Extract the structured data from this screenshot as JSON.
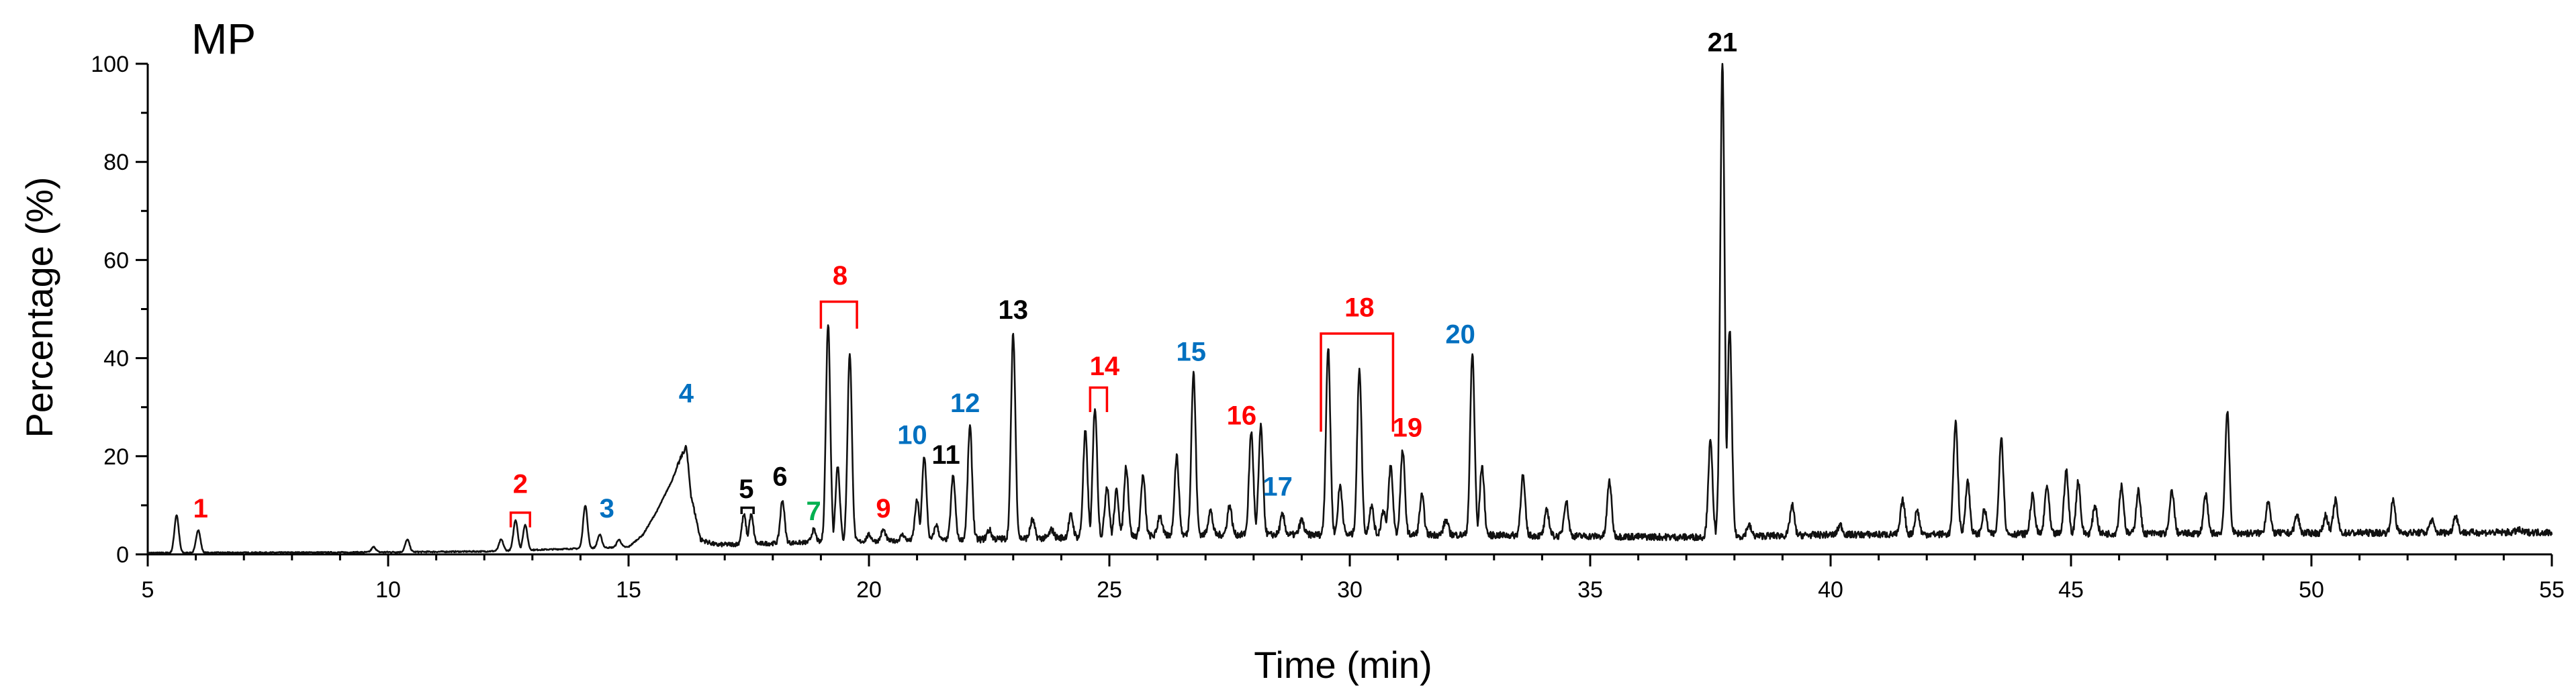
{
  "chart_data": {
    "type": "line",
    "title": "MP",
    "xlabel": "Time (min)",
    "ylabel": "Percentage (%)",
    "xlim": [
      5,
      55
    ],
    "ylim": [
      0,
      100
    ],
    "x_ticks": [
      "5",
      "10",
      "15",
      "20",
      "25",
      "30",
      "35",
      "40",
      "45",
      "50",
      "55"
    ],
    "y_ticks": [
      "0",
      "20",
      "40",
      "60",
      "80",
      "100"
    ],
    "grid": false,
    "colors": {
      "red": "#ff0000",
      "blue": "#0070c0",
      "green": "#00b050",
      "black": "#000000",
      "trace": "#111111"
    },
    "baseline_segments": [
      {
        "x": 5.0,
        "y": 0.3
      },
      {
        "x": 9.0,
        "y": 0.4
      },
      {
        "x": 12.0,
        "y": 0.6
      },
      {
        "x": 15.0,
        "y": 1.5
      },
      {
        "x": 17.0,
        "y": 2.0
      },
      {
        "x": 19.0,
        "y": 2.5
      },
      {
        "x": 22.0,
        "y": 3.0
      },
      {
        "x": 27.0,
        "y": 4.0
      },
      {
        "x": 32.0,
        "y": 4.0
      },
      {
        "x": 37.0,
        "y": 3.5
      },
      {
        "x": 40.0,
        "y": 4.0
      },
      {
        "x": 45.0,
        "y": 4.2
      },
      {
        "x": 55.0,
        "y": 4.5
      }
    ],
    "broad_hump": [
      {
        "x": 15.0,
        "y": 1.5
      },
      {
        "x": 15.3,
        "y": 4
      },
      {
        "x": 15.6,
        "y": 9
      },
      {
        "x": 15.9,
        "y": 15
      },
      {
        "x": 16.1,
        "y": 20
      },
      {
        "x": 16.2,
        "y": 22
      },
      {
        "x": 16.3,
        "y": 12
      },
      {
        "x": 16.5,
        "y": 3
      },
      {
        "x": 16.8,
        "y": 2
      }
    ],
    "peaks": [
      {
        "x": 5.6,
        "y": 8
      },
      {
        "x": 6.05,
        "y": 5
      },
      {
        "x": 9.7,
        "y": 1.5
      },
      {
        "x": 10.4,
        "y": 3
      },
      {
        "x": 12.35,
        "y": 3
      },
      {
        "x": 12.65,
        "y": 7
      },
      {
        "x": 12.85,
        "y": 6
      },
      {
        "x": 14.1,
        "y": 10
      },
      {
        "x": 14.4,
        "y": 4
      },
      {
        "x": 14.8,
        "y": 3
      },
      {
        "x": 17.4,
        "y": 8
      },
      {
        "x": 17.55,
        "y": 8
      },
      {
        "x": 18.2,
        "y": 11
      },
      {
        "x": 18.85,
        "y": 5
      },
      {
        "x": 19.15,
        "y": 47
      },
      {
        "x": 19.35,
        "y": 18
      },
      {
        "x": 19.6,
        "y": 41
      },
      {
        "x": 20.0,
        "y": 4
      },
      {
        "x": 20.3,
        "y": 5
      },
      {
        "x": 20.7,
        "y": 4
      },
      {
        "x": 21.0,
        "y": 11
      },
      {
        "x": 21.15,
        "y": 20
      },
      {
        "x": 21.4,
        "y": 6
      },
      {
        "x": 21.75,
        "y": 16
      },
      {
        "x": 22.1,
        "y": 26
      },
      {
        "x": 22.5,
        "y": 5
      },
      {
        "x": 23.0,
        "y": 45
      },
      {
        "x": 23.4,
        "y": 7
      },
      {
        "x": 23.8,
        "y": 5
      },
      {
        "x": 24.2,
        "y": 8
      },
      {
        "x": 24.5,
        "y": 25
      },
      {
        "x": 24.7,
        "y": 30
      },
      {
        "x": 24.95,
        "y": 14
      },
      {
        "x": 25.15,
        "y": 13
      },
      {
        "x": 25.35,
        "y": 18
      },
      {
        "x": 25.7,
        "y": 16
      },
      {
        "x": 26.05,
        "y": 8
      },
      {
        "x": 26.4,
        "y": 20
      },
      {
        "x": 26.75,
        "y": 37
      },
      {
        "x": 27.1,
        "y": 9
      },
      {
        "x": 27.5,
        "y": 10
      },
      {
        "x": 27.95,
        "y": 25
      },
      {
        "x": 28.15,
        "y": 26
      },
      {
        "x": 28.6,
        "y": 8
      },
      {
        "x": 29.0,
        "y": 7
      },
      {
        "x": 29.55,
        "y": 42
      },
      {
        "x": 29.8,
        "y": 14
      },
      {
        "x": 30.2,
        "y": 38
      },
      {
        "x": 30.45,
        "y": 10
      },
      {
        "x": 30.7,
        "y": 9
      },
      {
        "x": 30.85,
        "y": 18
      },
      {
        "x": 31.1,
        "y": 21
      },
      {
        "x": 31.5,
        "y": 12
      },
      {
        "x": 32.0,
        "y": 7
      },
      {
        "x": 32.55,
        "y": 41
      },
      {
        "x": 32.75,
        "y": 18
      },
      {
        "x": 33.6,
        "y": 16
      },
      {
        "x": 34.1,
        "y": 9
      },
      {
        "x": 34.5,
        "y": 11
      },
      {
        "x": 35.4,
        "y": 15
      },
      {
        "x": 37.5,
        "y": 23
      },
      {
        "x": 37.75,
        "y": 100
      },
      {
        "x": 37.9,
        "y": 46
      },
      {
        "x": 38.3,
        "y": 6
      },
      {
        "x": 39.2,
        "y": 10
      },
      {
        "x": 40.2,
        "y": 6
      },
      {
        "x": 41.5,
        "y": 11
      },
      {
        "x": 41.8,
        "y": 9
      },
      {
        "x": 42.6,
        "y": 27
      },
      {
        "x": 42.85,
        "y": 15
      },
      {
        "x": 43.2,
        "y": 9
      },
      {
        "x": 43.55,
        "y": 24
      },
      {
        "x": 44.2,
        "y": 12
      },
      {
        "x": 44.5,
        "y": 14
      },
      {
        "x": 44.9,
        "y": 17
      },
      {
        "x": 45.15,
        "y": 15
      },
      {
        "x": 45.5,
        "y": 10
      },
      {
        "x": 46.05,
        "y": 14
      },
      {
        "x": 46.4,
        "y": 13
      },
      {
        "x": 47.1,
        "y": 13
      },
      {
        "x": 47.8,
        "y": 12
      },
      {
        "x": 48.25,
        "y": 29
      },
      {
        "x": 49.1,
        "y": 11
      },
      {
        "x": 49.7,
        "y": 8
      },
      {
        "x": 50.3,
        "y": 8
      },
      {
        "x": 50.5,
        "y": 11
      },
      {
        "x": 51.7,
        "y": 11
      },
      {
        "x": 52.5,
        "y": 7
      },
      {
        "x": 53.0,
        "y": 8
      },
      {
        "x": 54.3,
        "y": 5
      }
    ],
    "annotations": [
      {
        "text": "1",
        "x": 6.1,
        "y": 7.5,
        "color": "red"
      },
      {
        "text": "2",
        "x": 12.75,
        "y": 12.5,
        "color": "red"
      },
      {
        "text": "3",
        "x": 14.55,
        "y": 7.5,
        "color": "blue"
      },
      {
        "text": "4",
        "x": 16.2,
        "y": 31,
        "color": "blue"
      },
      {
        "text": "5",
        "x": 17.45,
        "y": 11.5,
        "color": "black"
      },
      {
        "text": "6",
        "x": 18.15,
        "y": 14,
        "color": "black"
      },
      {
        "text": "7",
        "x": 18.85,
        "y": 7,
        "color": "green"
      },
      {
        "text": "8",
        "x": 19.4,
        "y": 55,
        "color": "red"
      },
      {
        "text": "9",
        "x": 20.3,
        "y": 7.5,
        "color": "red"
      },
      {
        "text": "10",
        "x": 20.9,
        "y": 22.5,
        "color": "blue"
      },
      {
        "text": "11",
        "x": 21.6,
        "y": 18.5,
        "color": "black"
      },
      {
        "text": "12",
        "x": 22.0,
        "y": 29,
        "color": "blue"
      },
      {
        "text": "13",
        "x": 23.0,
        "y": 48,
        "color": "black"
      },
      {
        "text": "14",
        "x": 24.9,
        "y": 36.5,
        "color": "red"
      },
      {
        "text": "15",
        "x": 26.7,
        "y": 39.5,
        "color": "blue"
      },
      {
        "text": "16",
        "x": 27.75,
        "y": 26.5,
        "color": "red"
      },
      {
        "text": "17",
        "x": 28.5,
        "y": 12,
        "color": "blue"
      },
      {
        "text": "18",
        "x": 30.2,
        "y": 48.5,
        "color": "red"
      },
      {
        "text": "19",
        "x": 31.2,
        "y": 24,
        "color": "red"
      },
      {
        "text": "20",
        "x": 32.3,
        "y": 43,
        "color": "blue"
      },
      {
        "text": "21",
        "x": 37.75,
        "y": 102.5,
        "color": "black"
      }
    ],
    "brackets": [
      {
        "label": "2",
        "x1": 12.55,
        "x2": 12.95,
        "y_top": 8.5,
        "y_end": 5.5,
        "color": "red"
      },
      {
        "label": "5",
        "x1": 17.35,
        "x2": 17.6,
        "y_top": 9.5,
        "y_end": 8.2,
        "color": "black"
      },
      {
        "label": "8",
        "x1": 19.0,
        "x2": 19.75,
        "y_top": 51.5,
        "y_end": 46,
        "color": "red"
      },
      {
        "label": "14",
        "x1": 24.6,
        "x2": 24.95,
        "y_top": 34,
        "y_end": 29,
        "color": "red"
      },
      {
        "label": "18",
        "x1": 29.4,
        "x2": 30.9,
        "y_top": 45,
        "y_end": 25,
        "color": "red"
      }
    ]
  }
}
